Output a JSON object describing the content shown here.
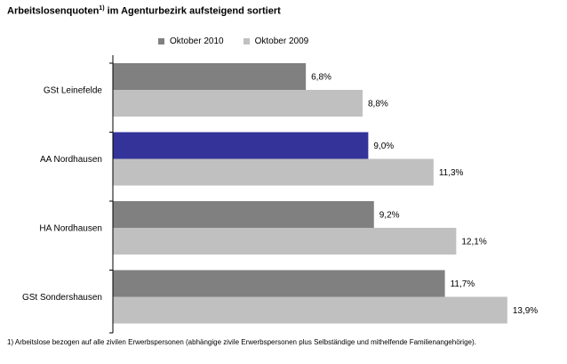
{
  "chart_data": {
    "type": "bar",
    "orientation": "horizontal",
    "title_main": "Arbeitslosenquoten",
    "title_sup": "1)",
    "title_rest": " im Agenturbezirk aufsteigend sortiert",
    "categories": [
      "GSt Leinefelde",
      "AA Nordhausen",
      "HA Nordhausen",
      "GSt Sondershausen"
    ],
    "series": [
      {
        "name": "Oktober 2010",
        "color": "#808080",
        "values": [
          6.8,
          9.0,
          9.2,
          11.7
        ],
        "labels": [
          "6,8%",
          "9,0%",
          "9,2%",
          "11,7%"
        ]
      },
      {
        "name": "Oktober 2009",
        "color": "#c0c0c0",
        "values": [
          8.8,
          11.3,
          12.1,
          13.9
        ],
        "labels": [
          "8,8%",
          "11,3%",
          "12,1%",
          "13,9%"
        ]
      }
    ],
    "highlight": {
      "category_index": 1,
      "series_index": 0,
      "color": "#333399"
    },
    "xlim": [
      0,
      14.5
    ],
    "grid": false,
    "legend_position": "top"
  },
  "footnote": "1) Arbeitslose bezogen auf alle zivilen Erwerbspersonen (abhängige zivile Erwerbspersonen plus Selbständige und mithelfende Familienangehörige)."
}
